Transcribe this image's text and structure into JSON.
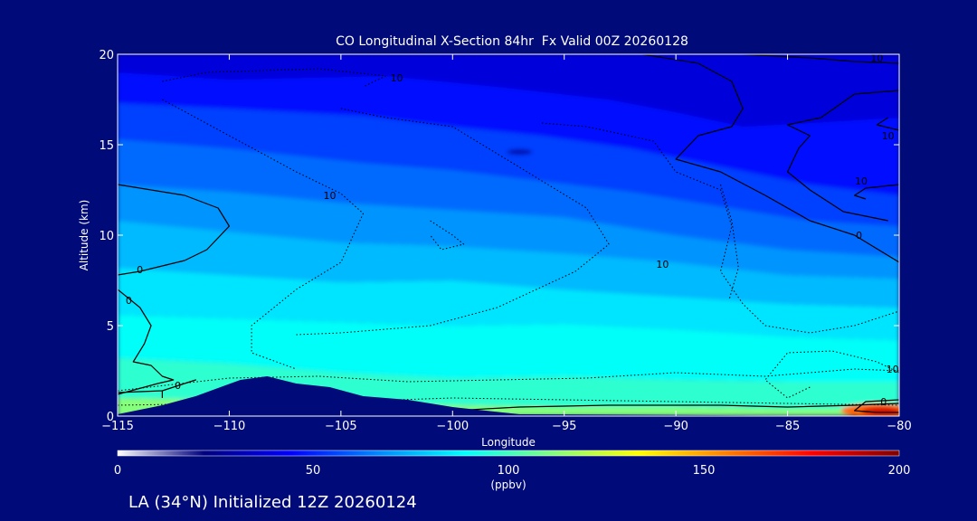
{
  "chart_data": {
    "type": "heatmap",
    "title": "CO Longitudinal X-Section 84hr  Fx Valid 00Z 20260128",
    "subtitle": "LA (34°N) Initialized 12Z 20260124",
    "xlabel": "Longitude",
    "ylabel": "Altitude (km)",
    "xlim": [
      -115,
      -80
    ],
    "ylim": [
      0,
      20
    ],
    "x_ticks": [
      -115,
      -110,
      -105,
      -100,
      -95,
      -90,
      -85,
      -80
    ],
    "x_tick_labels": [
      "−115",
      "−110",
      "−105",
      "−100",
      "−95",
      "−90",
      "−85",
      "−80"
    ],
    "y_ticks": [
      0,
      5,
      10,
      15,
      20
    ],
    "y_tick_labels": [
      "0",
      "5",
      "10",
      "15",
      "20"
    ],
    "colorbar": {
      "min": 0,
      "max": 200,
      "ticks": [
        0,
        50,
        100,
        150,
        200
      ],
      "tick_labels": [
        "0",
        "50",
        "100",
        "150",
        "200"
      ],
      "units": "(ppbv)",
      "colors": [
        "#ffffff",
        "#000080",
        "#0000ff",
        "#0088ff",
        "#00ffff",
        "#80ff80",
        "#ffff00",
        "#ff8000",
        "#ff0000",
        "#800000"
      ]
    },
    "contour_labels": [
      {
        "text": "10",
        "lon": -102.5,
        "alt": 18.5
      },
      {
        "text": "10",
        "lon": -81.0,
        "alt": 19.6
      },
      {
        "text": "10",
        "lon": -80.5,
        "alt": 15.3
      },
      {
        "text": "10",
        "lon": -105.5,
        "alt": 12.0
      },
      {
        "text": "10",
        "lon": -81.7,
        "alt": 12.8
      },
      {
        "text": "0",
        "lon": -81.8,
        "alt": 9.8
      },
      {
        "text": "10",
        "lon": -90.6,
        "alt": 8.2
      },
      {
        "text": "0",
        "lon": -114.0,
        "alt": 7.9
      },
      {
        "text": "0",
        "lon": -114.5,
        "alt": 6.2
      },
      {
        "text": "10",
        "lon": -80.3,
        "alt": 2.4
      },
      {
        "text": "0",
        "lon": -112.3,
        "alt": 1.5
      },
      {
        "text": "0",
        "lon": -80.7,
        "alt": 0.6
      }
    ],
    "terrain_profile": [
      {
        "lon": -115.0,
        "alt": 0.1
      },
      {
        "lon": -113.0,
        "alt": 0.6
      },
      {
        "lon": -111.5,
        "alt": 1.1
      },
      {
        "lon": -109.5,
        "alt": 2.0
      },
      {
        "lon": -108.3,
        "alt": 2.2
      },
      {
        "lon": -107.0,
        "alt": 1.8
      },
      {
        "lon": -105.5,
        "alt": 1.6
      },
      {
        "lon": -104.0,
        "alt": 1.1
      },
      {
        "lon": -102.0,
        "alt": 0.9
      },
      {
        "lon": -100.0,
        "alt": 0.5
      },
      {
        "lon": -97.0,
        "alt": 0.1
      },
      {
        "lon": -80.0,
        "alt": 0.0
      }
    ]
  }
}
